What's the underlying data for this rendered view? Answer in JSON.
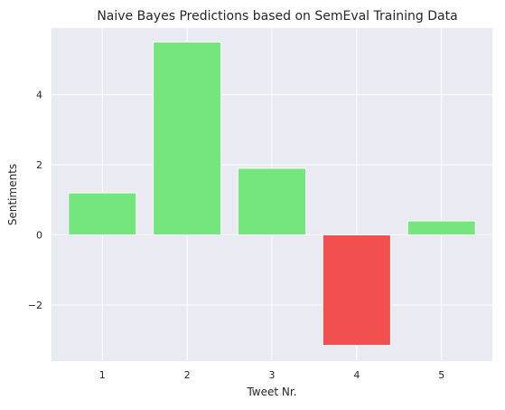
{
  "chart_data": {
    "type": "bar",
    "title": "Naive Bayes Predictions based on SemEval Training Data",
    "xlabel": "Tweet Nr.",
    "ylabel": "Sentiments",
    "categories": [
      "1",
      "2",
      "3",
      "4",
      "5"
    ],
    "values": [
      1.2,
      5.5,
      1.9,
      -3.15,
      0.4
    ],
    "ylim": [
      -3.6,
      5.9
    ],
    "yticks": [
      -2,
      0,
      2,
      4
    ],
    "ytick_labels": [
      "−2",
      "0",
      "2",
      "4"
    ],
    "grid": true,
    "colors": {
      "positive": "#75e67d",
      "negative": "#f24f4f",
      "plot_background": "#eaeaf2",
      "grid": "#ffffff"
    }
  }
}
